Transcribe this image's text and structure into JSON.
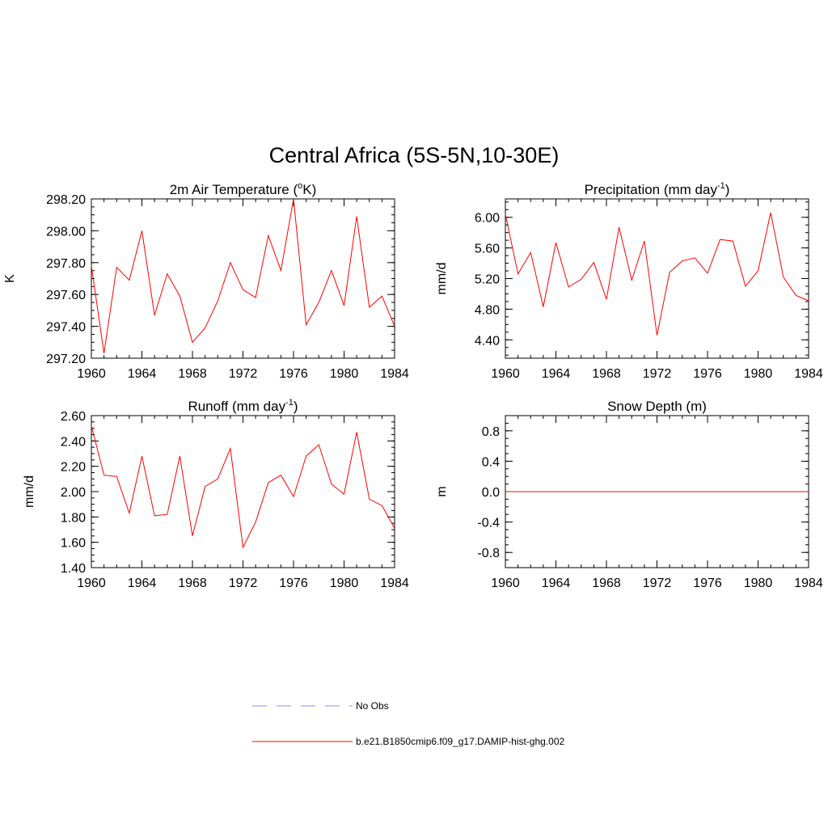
{
  "title": "Central Africa (5S-5N,10-30E)",
  "colors": {
    "model": "#ff0000",
    "obs": "#a0a0ff"
  },
  "legend": {
    "entries": [
      {
        "label": "No Obs",
        "style": "dashed",
        "color": "#a0a0ff"
      },
      {
        "label": "b.e21.B1850cmip6.f09_g17.DAMIP-hist-ghg.002",
        "style": "solid",
        "color": "#ff0000"
      }
    ]
  },
  "chart_data": [
    {
      "type": "line",
      "title": "2m Air Temperature",
      "title_prefix": "2m Air Temperature (",
      "title_sup": "o",
      "title_suffix": "K)",
      "ylabel": "K",
      "x": [
        1960,
        1961,
        1962,
        1963,
        1964,
        1965,
        1966,
        1967,
        1968,
        1969,
        1970,
        1971,
        1972,
        1973,
        1974,
        1975,
        1976,
        1977,
        1978,
        1979,
        1980,
        1981,
        1982,
        1983,
        1984
      ],
      "xlim": [
        1960,
        1984
      ],
      "xticks": [
        1960,
        1964,
        1968,
        1972,
        1976,
        1980,
        1984
      ],
      "ylim": [
        297.2,
        298.2
      ],
      "yticks": [
        297.2,
        297.4,
        297.6,
        297.8,
        298.0,
        298.2
      ],
      "ytick_labels": [
        "297.20",
        "297.40",
        "297.60",
        "297.80",
        "298.00",
        "298.20"
      ],
      "series": [
        {
          "name": "b.e21.B1850cmip6.f09_g17.DAMIP-hist-ghg.002",
          "values": [
            297.78,
            297.23,
            297.77,
            297.69,
            298.0,
            297.47,
            297.73,
            297.59,
            297.3,
            297.39,
            297.56,
            297.8,
            297.63,
            297.58,
            297.97,
            297.75,
            298.2,
            297.41,
            297.55,
            297.75,
            297.53,
            298.09,
            297.52,
            297.59,
            297.4
          ]
        }
      ]
    },
    {
      "type": "line",
      "title": "Precipitation",
      "title_prefix": "Precipitation (mm day",
      "title_sup": "-1",
      "title_suffix": ")",
      "ylabel": "mm/d",
      "x": [
        1960,
        1961,
        1962,
        1963,
        1964,
        1965,
        1966,
        1967,
        1968,
        1969,
        1970,
        1971,
        1972,
        1973,
        1974,
        1975,
        1976,
        1977,
        1978,
        1979,
        1980,
        1981,
        1982,
        1983,
        1984
      ],
      "xlim": [
        1960,
        1984
      ],
      "xticks": [
        1960,
        1964,
        1968,
        1972,
        1976,
        1980,
        1984
      ],
      "ylim": [
        4.16,
        6.24
      ],
      "yticks": [
        4.4,
        4.8,
        5.2,
        5.6,
        6.0
      ],
      "ytick_labels": [
        "4.40",
        "4.80",
        "5.20",
        "5.60",
        "6.00"
      ],
      "series": [
        {
          "name": "b.e21.B1850cmip6.f09_g17.DAMIP-hist-ghg.002",
          "values": [
            6.04,
            5.26,
            5.54,
            4.83,
            5.67,
            5.09,
            5.19,
            5.41,
            4.93,
            5.87,
            5.18,
            5.69,
            4.46,
            5.28,
            5.43,
            5.47,
            5.27,
            5.71,
            5.69,
            5.1,
            5.3,
            6.06,
            5.22,
            4.98,
            4.91
          ]
        }
      ]
    },
    {
      "type": "line",
      "title": "Runoff",
      "title_prefix": "Runoff (mm day",
      "title_sup": "-1",
      "title_suffix": ")",
      "ylabel": "mm/d",
      "x": [
        1960,
        1961,
        1962,
        1963,
        1964,
        1965,
        1966,
        1967,
        1968,
        1969,
        1970,
        1971,
        1972,
        1973,
        1974,
        1975,
        1976,
        1977,
        1978,
        1979,
        1980,
        1981,
        1982,
        1983,
        1984
      ],
      "xlim": [
        1960,
        1984
      ],
      "xticks": [
        1960,
        1964,
        1968,
        1972,
        1976,
        1980,
        1984
      ],
      "ylim": [
        1.4,
        2.6
      ],
      "yticks": [
        1.4,
        1.6,
        1.8,
        2.0,
        2.2,
        2.4,
        2.6
      ],
      "ytick_labels": [
        "1.40",
        "1.60",
        "1.80",
        "2.00",
        "2.20",
        "2.40",
        "2.60"
      ],
      "series": [
        {
          "name": "b.e21.B1850cmip6.f09_g17.DAMIP-hist-ghg.002",
          "values": [
            2.52,
            2.13,
            2.12,
            1.83,
            2.28,
            1.81,
            1.82,
            2.28,
            1.65,
            2.04,
            2.1,
            2.34,
            1.56,
            1.76,
            2.07,
            2.13,
            1.96,
            2.28,
            2.37,
            2.06,
            1.98,
            2.47,
            1.94,
            1.89,
            1.71
          ]
        }
      ]
    },
    {
      "type": "line",
      "title": "Snow Depth (m)",
      "title_prefix": "Snow Depth (m)",
      "title_sup": "",
      "title_suffix": "",
      "ylabel": "m",
      "x": [
        1960,
        1961,
        1962,
        1963,
        1964,
        1965,
        1966,
        1967,
        1968,
        1969,
        1970,
        1971,
        1972,
        1973,
        1974,
        1975,
        1976,
        1977,
        1978,
        1979,
        1980,
        1981,
        1982,
        1983,
        1984
      ],
      "xlim": [
        1960,
        1984
      ],
      "xticks": [
        1960,
        1964,
        1968,
        1972,
        1976,
        1980,
        1984
      ],
      "ylim": [
        -1.0,
        1.0
      ],
      "yticks": [
        -0.8,
        -0.4,
        0.0,
        0.4,
        0.8
      ],
      "ytick_labels": [
        "-0.8",
        "-0.4",
        "0.0",
        "0.4",
        "0.8"
      ],
      "series": [
        {
          "name": "b.e21.B1850cmip6.f09_g17.DAMIP-hist-ghg.002",
          "values": [
            0,
            0,
            0,
            0,
            0,
            0,
            0,
            0,
            0,
            0,
            0,
            0,
            0,
            0,
            0,
            0,
            0,
            0,
            0,
            0,
            0,
            0,
            0,
            0,
            0
          ]
        }
      ]
    }
  ]
}
